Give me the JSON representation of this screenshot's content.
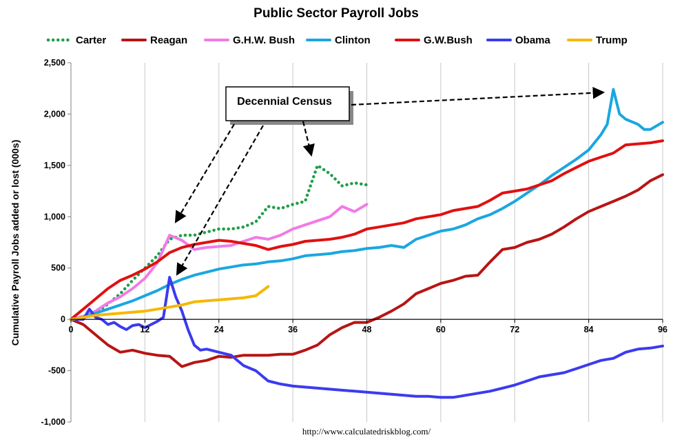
{
  "chart_data": {
    "type": "line",
    "title": "Public Sector Payroll Jobs",
    "ylabel": "Cumulative Payroll Jobs added or lost (000s)",
    "xlabel": "",
    "source": "http://www.calculatedriskblog.com/",
    "xlim": [
      0,
      96
    ],
    "ylim": [
      -1000,
      2500
    ],
    "x_ticks": [
      0,
      12,
      24,
      36,
      48,
      60,
      72,
      84,
      96
    ],
    "y_ticks": [
      -1000,
      -500,
      0,
      500,
      1000,
      1500,
      2000,
      2500
    ],
    "y_tick_labels": [
      "-1,000",
      "-500",
      "0",
      "500",
      "1,000",
      "1,500",
      "2,000",
      "2,500"
    ],
    "grid": "vertical",
    "legend_position": "top",
    "annotation": "Decennial Census",
    "series": [
      {
        "name": "Carter",
        "color": "#1e9e4a",
        "style": "dotted",
        "points": [
          [
            0,
            0
          ],
          [
            2,
            20
          ],
          [
            4,
            60
          ],
          [
            6,
            150
          ],
          [
            8,
            250
          ],
          [
            10,
            380
          ],
          [
            12,
            500
          ],
          [
            14,
            620
          ],
          [
            16,
            780
          ],
          [
            18,
            820
          ],
          [
            20,
            820
          ],
          [
            22,
            850
          ],
          [
            24,
            880
          ],
          [
            26,
            880
          ],
          [
            28,
            900
          ],
          [
            30,
            950
          ],
          [
            32,
            1100
          ],
          [
            34,
            1080
          ],
          [
            36,
            1120
          ],
          [
            38,
            1150
          ],
          [
            40,
            1500
          ],
          [
            42,
            1420
          ],
          [
            44,
            1300
          ],
          [
            46,
            1330
          ],
          [
            48,
            1310
          ]
        ]
      },
      {
        "name": "Reagan",
        "color": "#b81414",
        "style": "solid",
        "points": [
          [
            0,
            0
          ],
          [
            2,
            -50
          ],
          [
            4,
            -150
          ],
          [
            6,
            -250
          ],
          [
            8,
            -320
          ],
          [
            10,
            -300
          ],
          [
            12,
            -330
          ],
          [
            14,
            -350
          ],
          [
            16,
            -360
          ],
          [
            18,
            -460
          ],
          [
            20,
            -420
          ],
          [
            22,
            -400
          ],
          [
            24,
            -360
          ],
          [
            26,
            -370
          ],
          [
            28,
            -350
          ],
          [
            30,
            -350
          ],
          [
            32,
            -350
          ],
          [
            34,
            -340
          ],
          [
            36,
            -340
          ],
          [
            38,
            -300
          ],
          [
            40,
            -250
          ],
          [
            42,
            -150
          ],
          [
            44,
            -80
          ],
          [
            46,
            -30
          ],
          [
            48,
            -30
          ],
          [
            50,
            20
          ],
          [
            52,
            80
          ],
          [
            54,
            150
          ],
          [
            56,
            250
          ],
          [
            58,
            300
          ],
          [
            60,
            350
          ],
          [
            62,
            380
          ],
          [
            64,
            420
          ],
          [
            66,
            430
          ],
          [
            68,
            560
          ],
          [
            70,
            680
          ],
          [
            72,
            700
          ],
          [
            74,
            750
          ],
          [
            76,
            780
          ],
          [
            78,
            830
          ],
          [
            80,
            900
          ],
          [
            82,
            980
          ],
          [
            84,
            1050
          ],
          [
            86,
            1100
          ],
          [
            88,
            1150
          ],
          [
            90,
            1200
          ],
          [
            92,
            1260
          ],
          [
            94,
            1350
          ],
          [
            96,
            1410
          ]
        ]
      },
      {
        "name": "G.H.W. Bush",
        "color": "#f27ae6",
        "style": "solid",
        "points": [
          [
            0,
            0
          ],
          [
            2,
            30
          ],
          [
            4,
            80
          ],
          [
            6,
            160
          ],
          [
            8,
            220
          ],
          [
            10,
            300
          ],
          [
            12,
            400
          ],
          [
            14,
            550
          ],
          [
            16,
            820
          ],
          [
            18,
            770
          ],
          [
            20,
            680
          ],
          [
            22,
            700
          ],
          [
            24,
            710
          ],
          [
            26,
            720
          ],
          [
            28,
            760
          ],
          [
            30,
            800
          ],
          [
            32,
            780
          ],
          [
            34,
            820
          ],
          [
            36,
            880
          ],
          [
            38,
            920
          ],
          [
            40,
            960
          ],
          [
            42,
            1000
          ],
          [
            44,
            1100
          ],
          [
            46,
            1050
          ],
          [
            48,
            1120
          ]
        ]
      },
      {
        "name": "Clinton",
        "color": "#1aa7e0",
        "style": "solid",
        "points": [
          [
            0,
            0
          ],
          [
            2,
            20
          ],
          [
            4,
            60
          ],
          [
            6,
            100
          ],
          [
            8,
            140
          ],
          [
            10,
            180
          ],
          [
            12,
            230
          ],
          [
            14,
            280
          ],
          [
            16,
            340
          ],
          [
            18,
            390
          ],
          [
            20,
            430
          ],
          [
            22,
            460
          ],
          [
            24,
            490
          ],
          [
            26,
            510
          ],
          [
            28,
            530
          ],
          [
            30,
            540
          ],
          [
            32,
            560
          ],
          [
            34,
            570
          ],
          [
            36,
            590
          ],
          [
            38,
            620
          ],
          [
            40,
            630
          ],
          [
            42,
            640
          ],
          [
            44,
            660
          ],
          [
            46,
            670
          ],
          [
            48,
            690
          ],
          [
            50,
            700
          ],
          [
            52,
            720
          ],
          [
            54,
            700
          ],
          [
            56,
            780
          ],
          [
            58,
            820
          ],
          [
            60,
            860
          ],
          [
            62,
            880
          ],
          [
            64,
            920
          ],
          [
            66,
            980
          ],
          [
            68,
            1020
          ],
          [
            70,
            1080
          ],
          [
            72,
            1150
          ],
          [
            74,
            1230
          ],
          [
            76,
            1310
          ],
          [
            78,
            1400
          ],
          [
            80,
            1480
          ],
          [
            82,
            1560
          ],
          [
            84,
            1650
          ],
          [
            86,
            1800
          ],
          [
            87,
            1900
          ],
          [
            88,
            2240
          ],
          [
            89,
            2000
          ],
          [
            90,
            1950
          ],
          [
            92,
            1900
          ],
          [
            93,
            1850
          ],
          [
            94,
            1850
          ],
          [
            96,
            1920
          ]
        ]
      },
      {
        "name": "G.W.Bush",
        "color": "#e01010",
        "style": "solid",
        "points": [
          [
            0,
            0
          ],
          [
            2,
            100
          ],
          [
            4,
            200
          ],
          [
            6,
            300
          ],
          [
            8,
            380
          ],
          [
            10,
            430
          ],
          [
            12,
            490
          ],
          [
            14,
            560
          ],
          [
            16,
            650
          ],
          [
            18,
            700
          ],
          [
            20,
            730
          ],
          [
            22,
            750
          ],
          [
            24,
            770
          ],
          [
            26,
            760
          ],
          [
            28,
            740
          ],
          [
            30,
            720
          ],
          [
            32,
            680
          ],
          [
            34,
            710
          ],
          [
            36,
            730
          ],
          [
            38,
            760
          ],
          [
            40,
            770
          ],
          [
            42,
            780
          ],
          [
            44,
            800
          ],
          [
            46,
            830
          ],
          [
            48,
            880
          ],
          [
            50,
            900
          ],
          [
            52,
            920
          ],
          [
            54,
            940
          ],
          [
            56,
            980
          ],
          [
            58,
            1000
          ],
          [
            60,
            1020
          ],
          [
            62,
            1060
          ],
          [
            64,
            1080
          ],
          [
            66,
            1100
          ],
          [
            68,
            1160
          ],
          [
            70,
            1230
          ],
          [
            72,
            1250
          ],
          [
            74,
            1270
          ],
          [
            76,
            1310
          ],
          [
            78,
            1350
          ],
          [
            80,
            1420
          ],
          [
            82,
            1480
          ],
          [
            84,
            1540
          ],
          [
            86,
            1580
          ],
          [
            88,
            1620
          ],
          [
            90,
            1700
          ],
          [
            92,
            1710
          ],
          [
            94,
            1720
          ],
          [
            96,
            1740
          ]
        ]
      },
      {
        "name": "Obama",
        "color": "#3b3bf0",
        "style": "solid",
        "points": [
          [
            0,
            0
          ],
          [
            2,
            0
          ],
          [
            3,
            100
          ],
          [
            4,
            20
          ],
          [
            5,
            0
          ],
          [
            6,
            -50
          ],
          [
            7,
            -30
          ],
          [
            8,
            -70
          ],
          [
            9,
            -100
          ],
          [
            10,
            -60
          ],
          [
            11,
            -50
          ],
          [
            12,
            -80
          ],
          [
            14,
            -20
          ],
          [
            15,
            20
          ],
          [
            16,
            410
          ],
          [
            17,
            220
          ],
          [
            18,
            80
          ],
          [
            19,
            -100
          ],
          [
            20,
            -250
          ],
          [
            21,
            -300
          ],
          [
            22,
            -290
          ],
          [
            24,
            -320
          ],
          [
            26,
            -350
          ],
          [
            28,
            -450
          ],
          [
            30,
            -500
          ],
          [
            32,
            -600
          ],
          [
            34,
            -630
          ],
          [
            36,
            -650
          ],
          [
            38,
            -660
          ],
          [
            40,
            -670
          ],
          [
            42,
            -680
          ],
          [
            44,
            -690
          ],
          [
            46,
            -700
          ],
          [
            48,
            -710
          ],
          [
            50,
            -720
          ],
          [
            52,
            -730
          ],
          [
            54,
            -740
          ],
          [
            56,
            -750
          ],
          [
            58,
            -750
          ],
          [
            60,
            -760
          ],
          [
            62,
            -760
          ],
          [
            64,
            -740
          ],
          [
            66,
            -720
          ],
          [
            68,
            -700
          ],
          [
            70,
            -670
          ],
          [
            72,
            -640
          ],
          [
            74,
            -600
          ],
          [
            76,
            -560
          ],
          [
            78,
            -540
          ],
          [
            80,
            -520
          ],
          [
            82,
            -480
          ],
          [
            84,
            -440
          ],
          [
            86,
            -400
          ],
          [
            88,
            -380
          ],
          [
            90,
            -320
          ],
          [
            92,
            -290
          ],
          [
            94,
            -280
          ],
          [
            96,
            -260
          ]
        ]
      },
      {
        "name": "Trump",
        "color": "#f5b800",
        "style": "solid",
        "points": [
          [
            0,
            0
          ],
          [
            2,
            20
          ],
          [
            4,
            40
          ],
          [
            6,
            50
          ],
          [
            8,
            60
          ],
          [
            10,
            70
          ],
          [
            12,
            80
          ],
          [
            14,
            100
          ],
          [
            16,
            120
          ],
          [
            18,
            140
          ],
          [
            20,
            170
          ],
          [
            22,
            180
          ],
          [
            24,
            190
          ],
          [
            26,
            200
          ],
          [
            28,
            210
          ],
          [
            30,
            230
          ],
          [
            32,
            320
          ]
        ]
      }
    ]
  }
}
